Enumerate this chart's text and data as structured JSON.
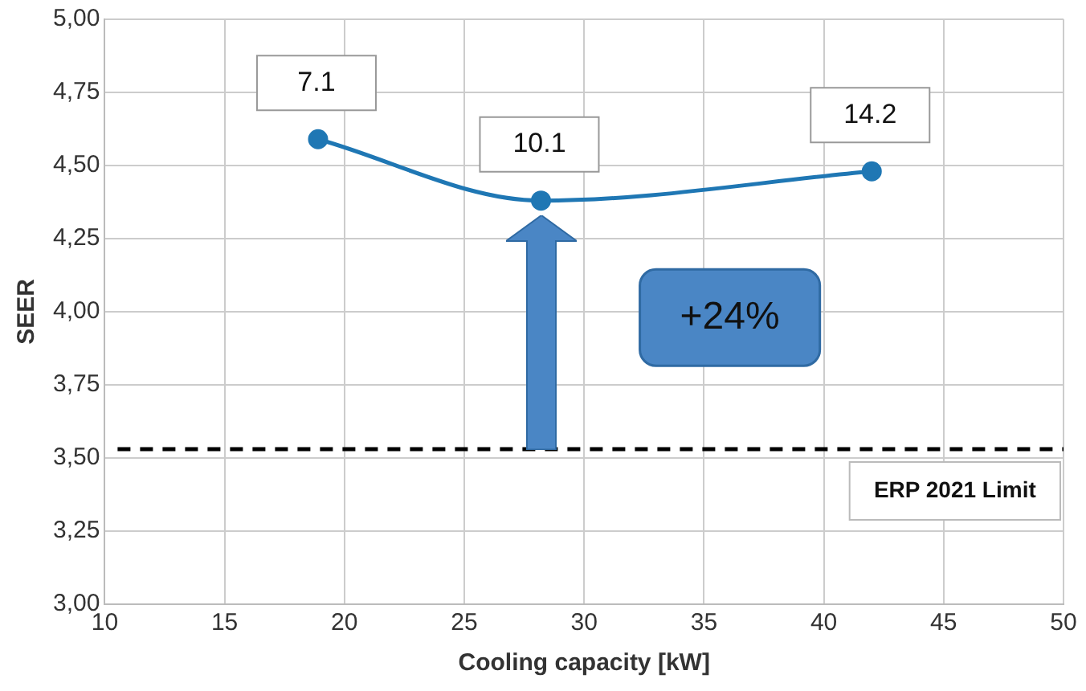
{
  "chart_data": {
    "type": "line",
    "xlabel": "Cooling capacity [kW]",
    "ylabel": "SEER",
    "x": [
      18.9,
      28.2,
      42
    ],
    "series": [
      {
        "color": "#1f77b4",
        "values": [
          4.59,
          4.38,
          4.48
        ]
      }
    ],
    "xlim": [
      10,
      50
    ],
    "xticks": [
      10,
      15,
      20,
      25,
      30,
      35,
      40,
      45,
      50
    ],
    "ylim": [
      3,
      5
    ],
    "yticks": [
      {
        "value": 3,
        "label": "3,00"
      },
      {
        "value": 3.25,
        "label": "3,25"
      },
      {
        "value": 3.5,
        "label": "3,50"
      },
      {
        "value": 3.75,
        "label": "3,75"
      },
      {
        "value": 4,
        "label": "4,00"
      },
      {
        "value": 4.25,
        "label": "4,25"
      },
      {
        "value": 4.5,
        "label": "4,50"
      },
      {
        "value": 4.75,
        "label": "4,75"
      },
      {
        "value": 5,
        "label": "5,00"
      }
    ],
    "ref_lines": [
      {
        "axis": "y",
        "value": 3.53,
        "label": "ERP 2021 Limit",
        "color": "#000000",
        "line_style": "dashed"
      }
    ],
    "annotations": [
      {
        "text": "7.1",
        "x": 18.9,
        "y": 4.59
      },
      {
        "text": "10.1",
        "x": 28.2,
        "y": 4.38
      },
      {
        "text": "14.2",
        "x": 42,
        "y": 4.48
      },
      "+24%"
    ],
    "grid": true,
    "legend": false,
    "marker": "circle",
    "line_style": "solid"
  }
}
